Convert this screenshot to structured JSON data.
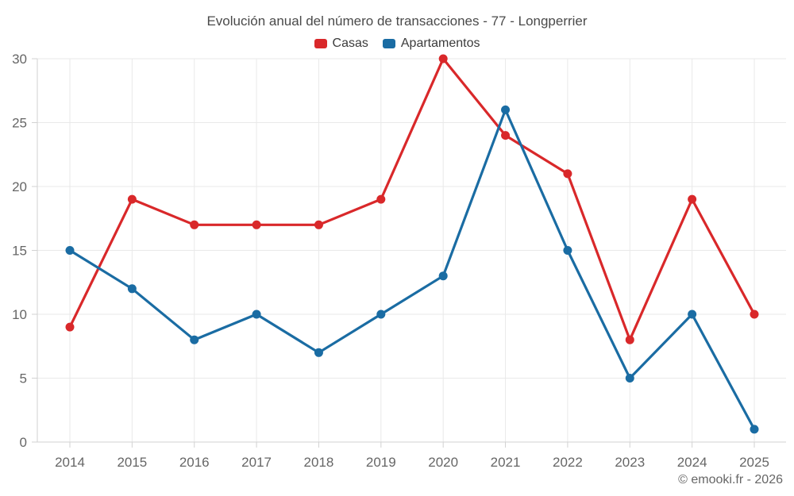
{
  "chart_data": {
    "type": "line",
    "title": "Evolución anual del número de transacciones - 77 - Longperrier",
    "categories": [
      "2014",
      "2015",
      "2016",
      "2017",
      "2018",
      "2019",
      "2020",
      "2021",
      "2022",
      "2023",
      "2024",
      "2025"
    ],
    "series": [
      {
        "name": "Casas",
        "color": "#d9282a",
        "values": [
          9,
          19,
          17,
          17,
          17,
          19,
          30,
          24,
          21,
          8,
          19,
          10
        ]
      },
      {
        "name": "Apartamentos",
        "color": "#1a6ca3",
        "values": [
          15,
          12,
          8,
          10,
          7,
          10,
          13,
          26,
          15,
          5,
          10,
          1
        ]
      }
    ],
    "xlabel": "",
    "ylabel": "",
    "ylim": [
      0,
      30
    ],
    "yticks": [
      0,
      5,
      10,
      15,
      20,
      25,
      30
    ],
    "grid": true,
    "legend_position": "top"
  },
  "footer": {
    "text": "© emooki.fr - 2026"
  },
  "colors": {
    "grid": "#e9e9e9",
    "axis": "#d2d2d2",
    "tick_label": "#666666",
    "title": "#4a4a4a",
    "legend_label": "#3b3b3b",
    "background": "#ffffff"
  }
}
